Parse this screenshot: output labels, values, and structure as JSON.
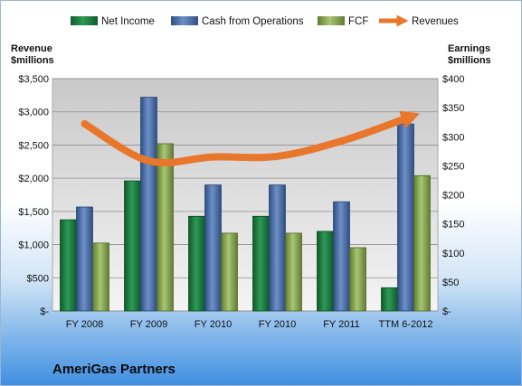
{
  "chart_data": {
    "type": "bar",
    "title": "",
    "company_label": "AmeriGas Partners",
    "left_axis": {
      "label_line1": "Revenue",
      "label_line2": "$millions",
      "min": 0,
      "max": 3500,
      "step": 500
    },
    "right_axis": {
      "label_line1": "Earnings",
      "label_line2": "$millions",
      "min": 0,
      "max": 400,
      "step": 50
    },
    "categories": [
      "FY 2008",
      "FY 2009",
      "FY 2010",
      "FY 2010",
      "FY 2011",
      "TTM 6-2012"
    ],
    "series": [
      {
        "name": "Net Income",
        "type": "bar",
        "axis": "right",
        "color": "#1f7a3f",
        "values": [
          157,
          224,
          163,
          163,
          137,
          40
        ]
      },
      {
        "name": "Cash from Operations",
        "type": "bar",
        "axis": "right",
        "color": "#4a6fa8",
        "values": [
          179,
          368,
          217,
          217,
          188,
          322
        ]
      },
      {
        "name": "FCF",
        "type": "bar",
        "axis": "right",
        "color": "#8aa857",
        "values": [
          117,
          288,
          134,
          134,
          109,
          233
        ]
      },
      {
        "name": "Revenues",
        "type": "line",
        "axis": "left",
        "color": "#e8762b",
        "values": [
          2820,
          2260,
          2320,
          2330,
          2560,
          2900
        ]
      }
    ],
    "legend_position": "top",
    "grid": true
  }
}
